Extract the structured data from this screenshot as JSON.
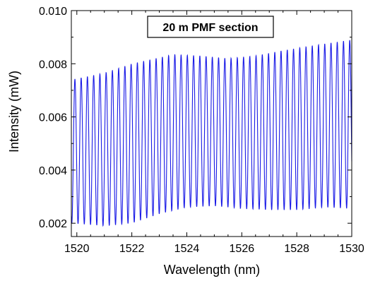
{
  "chart_data": {
    "type": "line",
    "title": "",
    "xlabel": "Wavelength (nm)",
    "ylabel": "Intensity (mW)",
    "xlim": [
      1519.8,
      1530.0
    ],
    "ylim": [
      0.0015,
      0.01
    ],
    "x_ticks": [
      1520,
      1522,
      1524,
      1526,
      1528,
      1530
    ],
    "x_tick_labels": [
      "1520",
      "1522",
      "1524",
      "1526",
      "1528",
      "1530"
    ],
    "y_ticks": [
      0.002,
      0.004,
      0.006,
      0.008,
      0.01
    ],
    "y_tick_labels": [
      "0.002",
      "0.004",
      "0.006",
      "0.008",
      "0.010"
    ],
    "grid": false,
    "legend": "none",
    "annotation": "20 m PMF section",
    "series_color": "#1a1ae6",
    "series": [
      {
        "fringe_period_nm": 0.2272,
        "first_peak_nm": 1519.93,
        "peak_envelope": [
          [
            1519.8,
            0.0074
          ],
          [
            1521.0,
            0.00765
          ],
          [
            1522.0,
            0.008
          ],
          [
            1523.5,
            0.00835
          ],
          [
            1524.5,
            0.0083
          ],
          [
            1525.5,
            0.0082
          ],
          [
            1526.5,
            0.0083
          ],
          [
            1527.5,
            0.0085
          ],
          [
            1529.0,
            0.00875
          ],
          [
            1530.0,
            0.0089
          ]
        ],
        "valley_envelope": [
          [
            1519.8,
            0.002
          ],
          [
            1521.0,
            0.0019
          ],
          [
            1522.0,
            0.002
          ],
          [
            1523.0,
            0.00235
          ],
          [
            1524.0,
            0.0026
          ],
          [
            1525.0,
            0.00265
          ],
          [
            1526.0,
            0.00255
          ],
          [
            1527.0,
            0.0025
          ],
          [
            1528.0,
            0.0025
          ],
          [
            1529.0,
            0.0026
          ],
          [
            1530.0,
            0.00255
          ]
        ]
      }
    ]
  }
}
